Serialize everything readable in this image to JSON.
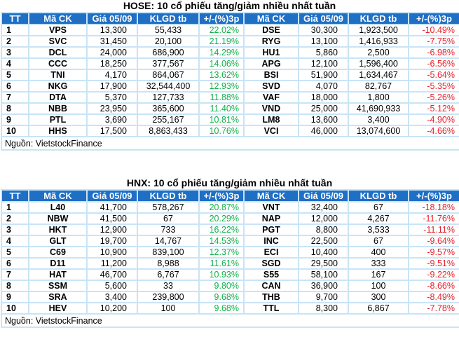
{
  "colors": {
    "header_bg": "#1f6fc5",
    "grid": "#c9e4f6",
    "up": "#12b04a",
    "down": "#e8202a"
  },
  "tables": [
    {
      "title": "HOSE: 10 cổ phiếu tăng/giảm nhiều nhất tuần",
      "headers": [
        "TT",
        "Mã CK",
        "Giá 05/09",
        "KLGD tb",
        "+/-(%)3p",
        "Mã CK",
        "Giá 05/09",
        "KLGD tb",
        "+/-(%)3p"
      ],
      "rows": [
        [
          "1",
          "VPS",
          "13,300",
          "55,433",
          "22.02%",
          "DSE",
          "30,300",
          "1,923,500",
          "-10.49%"
        ],
        [
          "2",
          "SVC",
          "31,450",
          "20,100",
          "21.19%",
          "RYG",
          "13,100",
          "1,416,933",
          "-7.75%"
        ],
        [
          "3",
          "DCL",
          "24,000",
          "686,900",
          "14.29%",
          "HU1",
          "5,860",
          "2,500",
          "-6.98%"
        ],
        [
          "4",
          "CCC",
          "18,250",
          "377,567",
          "14.06%",
          "APG",
          "12,100",
          "1,596,400",
          "-6.56%"
        ],
        [
          "5",
          "TNI",
          "4,170",
          "864,067",
          "13.62%",
          "BSI",
          "51,900",
          "1,634,467",
          "-5.64%"
        ],
        [
          "6",
          "NKG",
          "17,900",
          "32,544,400",
          "12.93%",
          "SVD",
          "4,070",
          "82,767",
          "-5.35%"
        ],
        [
          "7",
          "DTA",
          "5,370",
          "127,733",
          "11.88%",
          "VAF",
          "18,000",
          "1,800",
          "-5.26%"
        ],
        [
          "8",
          "NBB",
          "23,950",
          "365,600",
          "11.40%",
          "VND",
          "25,000",
          "41,690,933",
          "-5.12%"
        ],
        [
          "9",
          "PTL",
          "3,690",
          "255,167",
          "10.81%",
          "LM8",
          "13,600",
          "3,400",
          "-4.90%"
        ],
        [
          "10",
          "HHS",
          "17,500",
          "8,863,433",
          "10.76%",
          "VCI",
          "46,000",
          "13,074,600",
          "-4.66%"
        ]
      ],
      "source": "Nguồn: VietstockFinance"
    },
    {
      "title": "HNX: 10 cổ phiếu tăng/giảm nhiều nhất tuần",
      "headers": [
        "TT",
        "Mã CK",
        "Giá 05/09",
        "KLGD tb",
        "+/-(%)3p",
        "Mã CK",
        "Giá 05/09",
        "KLGD tb",
        "+/-(%)3p"
      ],
      "rows": [
        [
          "1",
          "L40",
          "41,700",
          "578,267",
          "20.87%",
          "VNT",
          "32,400",
          "67",
          "-18.18%"
        ],
        [
          "2",
          "NBW",
          "41,500",
          "67",
          "20.29%",
          "NAP",
          "12,000",
          "4,267",
          "-11.76%"
        ],
        [
          "3",
          "HKT",
          "12,900",
          "733",
          "16.22%",
          "PGT",
          "8,800",
          "3,533",
          "-11.11%"
        ],
        [
          "4",
          "GLT",
          "19,700",
          "14,767",
          "14.53%",
          "INC",
          "22,500",
          "67",
          "-9.64%"
        ],
        [
          "5",
          "C69",
          "10,900",
          "839,100",
          "12.37%",
          "ECI",
          "10,400",
          "400",
          "-9.57%"
        ],
        [
          "6",
          "D11",
          "11,200",
          "8,988",
          "11.61%",
          "SGD",
          "29,500",
          "333",
          "-9.51%"
        ],
        [
          "7",
          "HAT",
          "46,700",
          "6,767",
          "10.93%",
          "S55",
          "58,100",
          "167",
          "-9.22%"
        ],
        [
          "8",
          "SSM",
          "5,600",
          "33",
          "9.80%",
          "CAN",
          "36,900",
          "100",
          "-8.66%"
        ],
        [
          "9",
          "SRA",
          "3,400",
          "239,800",
          "9.68%",
          "THB",
          "9,700",
          "300",
          "-8.49%"
        ],
        [
          "10",
          "HEV",
          "10,200",
          "100",
          "9.68%",
          "TTL",
          "8,300",
          "6,867",
          "-7.78%"
        ]
      ],
      "source": "Nguồn: VietstockFinance"
    }
  ]
}
